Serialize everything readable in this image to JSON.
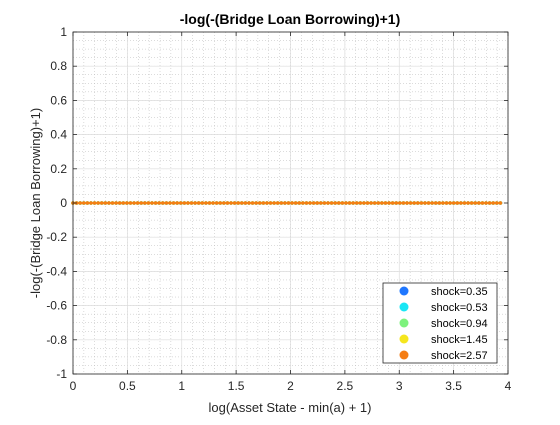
{
  "chart_data": {
    "type": "scatter",
    "title": "-log(-(Bridge Loan Borrowing)+1)",
    "xlabel": "log(Asset State - min(a) + 1)",
    "ylabel": "-log(-(Bridge Loan Borrowing)+1)",
    "xlim": [
      0,
      4
    ],
    "ylim": [
      -1,
      1
    ],
    "xticks": [
      0,
      0.5,
      1,
      1.5,
      2,
      2.5,
      3,
      3.5,
      4
    ],
    "xtick_labels": [
      "0",
      "0.5",
      "1",
      "1.5",
      "2",
      "2.5",
      "3",
      "3.5",
      "4"
    ],
    "yticks": [
      1,
      0.8,
      0.6,
      0.4,
      0.2,
      0,
      -0.2,
      -0.4,
      -0.6,
      -0.8,
      -1
    ],
    "ytick_labels": [
      "1",
      "0.8",
      "0.6",
      "0.4",
      "0.2",
      "0",
      "-0.2",
      "-0.4",
      "-0.6",
      "-0.8",
      "-1"
    ],
    "grid": true,
    "minor_grid": true,
    "legend_position": "bottom-right",
    "x_range_of_points": [
      0,
      3.93
    ],
    "points_per_series": 120,
    "series": [
      {
        "name": "shock=0.35",
        "color": "#1f77ff",
        "y_constant": 0
      },
      {
        "name": "shock=0.53",
        "color": "#19e6f5",
        "y_constant": 0
      },
      {
        "name": "shock=0.94",
        "color": "#7df27d",
        "y_constant": 0
      },
      {
        "name": "shock=1.45",
        "color": "#f5e61e",
        "y_constant": 0
      },
      {
        "name": "shock=2.57",
        "color": "#f57d14",
        "y_constant": 0
      }
    ]
  }
}
